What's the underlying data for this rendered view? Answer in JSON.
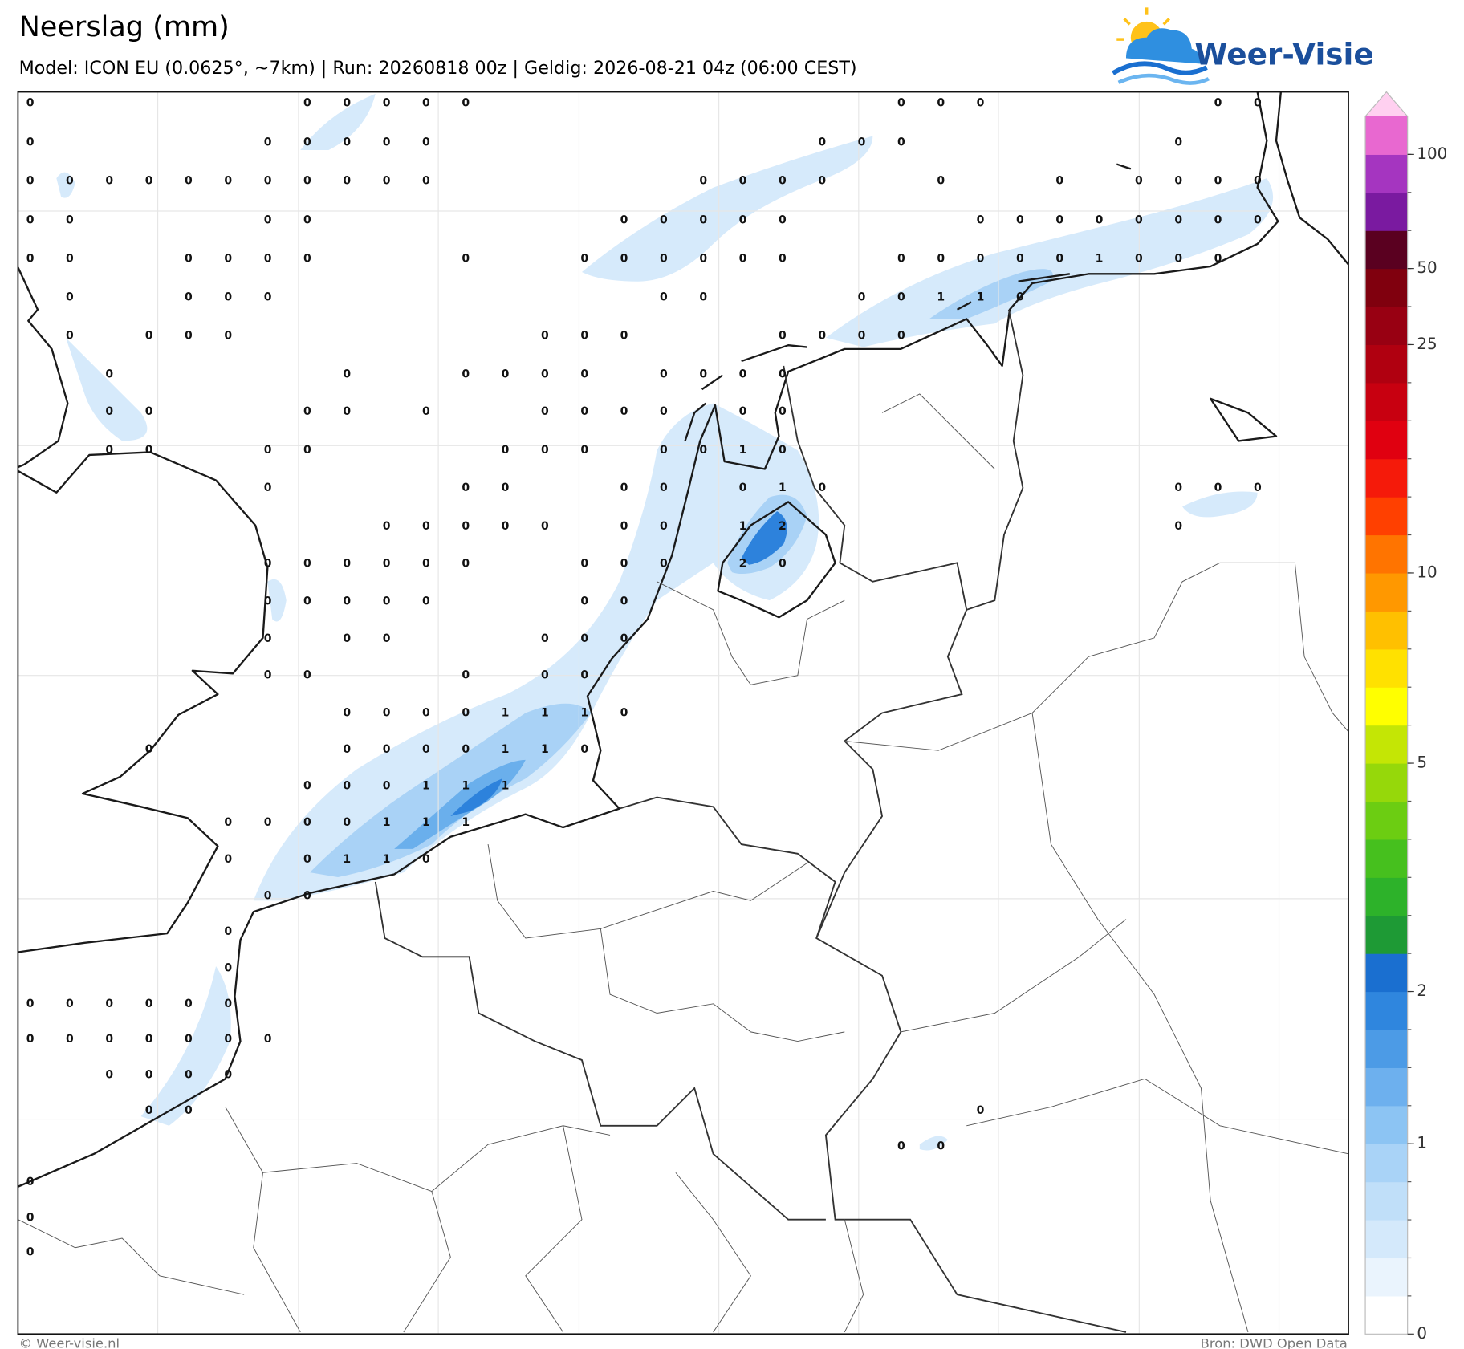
{
  "header": {
    "title": "Neerslag (mm)",
    "subtitle": "Model: ICON EU (0.0625°, ~7km)  |  Run: 20260818 00z  |  Geldig: 2026-08-21 04z (06:00 CEST)"
  },
  "logo": "Weer-Visie",
  "legend": {
    "ticks": [
      0,
      1,
      2,
      5,
      10,
      25,
      50,
      100
    ],
    "colors": [
      "#ffffff",
      "#eaf4fd",
      "#d4e9fb",
      "#c0dff9",
      "#a9d3f7",
      "#8cc4f3",
      "#6db0ee",
      "#4c9be6",
      "#2f86de",
      "#1a6fd0",
      "#1e9a35",
      "#2db22a",
      "#46c01e",
      "#6ccd12",
      "#96d80a",
      "#c4e605",
      "#ffff00",
      "#ffe100",
      "#ffc000",
      "#ff9800",
      "#ff7400",
      "#ff4000",
      "#f51a0a",
      "#e00010",
      "#c80010",
      "#b00010",
      "#980012",
      "#80000e",
      "#5a0020",
      "#7a1aa0",
      "#a535c0",
      "#e868d0",
      "#ffd0f0"
    ]
  },
  "grid": {
    "rows": [
      [
        0,
        null,
        null,
        null,
        null,
        null,
        null,
        0,
        0,
        0,
        0,
        0,
        null,
        null,
        null,
        null,
        null,
        null,
        null,
        null,
        null,
        null,
        0,
        0,
        0,
        null,
        null,
        null,
        null,
        null,
        0,
        0
      ],
      [
        0,
        null,
        null,
        null,
        null,
        null,
        0,
        0,
        0,
        0,
        0,
        null,
        null,
        null,
        null,
        null,
        null,
        null,
        null,
        null,
        0,
        0,
        0,
        null,
        null,
        null,
        null,
        null,
        null,
        0,
        null,
        null
      ],
      [
        0,
        0,
        0,
        0,
        0,
        0,
        0,
        0,
        0,
        0,
        0,
        null,
        null,
        null,
        null,
        null,
        null,
        0,
        0,
        0,
        0,
        null,
        null,
        0,
        null,
        null,
        0,
        null,
        0,
        0,
        0,
        0
      ],
      [
        0,
        0,
        null,
        null,
        null,
        null,
        0,
        0,
        null,
        null,
        null,
        null,
        null,
        null,
        null,
        0,
        0,
        0,
        0,
        0,
        null,
        null,
        null,
        null,
        0,
        0,
        0,
        0,
        0,
        0,
        0,
        0
      ],
      [
        0,
        0,
        null,
        null,
        0,
        0,
        0,
        0,
        null,
        null,
        null,
        0,
        null,
        null,
        0,
        0,
        0,
        0,
        0,
        0,
        null,
        null,
        0,
        0,
        0,
        0,
        0,
        1,
        0,
        0,
        0,
        null
      ],
      [
        null,
        0,
        null,
        null,
        0,
        0,
        0,
        null,
        null,
        null,
        null,
        null,
        null,
        null,
        null,
        null,
        0,
        0,
        null,
        null,
        null,
        0,
        0,
        1,
        1,
        0,
        null,
        null,
        null,
        null,
        null,
        null
      ],
      [
        null,
        0,
        null,
        0,
        0,
        0,
        null,
        null,
        null,
        null,
        null,
        null,
        null,
        0,
        0,
        0,
        null,
        null,
        null,
        0,
        0,
        0,
        0,
        null,
        null,
        null,
        null,
        null,
        null,
        null,
        null,
        null
      ],
      [
        null,
        null,
        0,
        null,
        null,
        null,
        null,
        null,
        0,
        null,
        null,
        0,
        0,
        0,
        0,
        null,
        0,
        0,
        0,
        0,
        null,
        null,
        null,
        null,
        null,
        null,
        null,
        null,
        null,
        null,
        null,
        null
      ],
      [
        null,
        null,
        0,
        0,
        null,
        null,
        null,
        0,
        0,
        null,
        0,
        null,
        null,
        0,
        0,
        0,
        0,
        null,
        0,
        0,
        null,
        null,
        null,
        null,
        null,
        null,
        null,
        null,
        null,
        null,
        null,
        null
      ],
      [
        null,
        null,
        0,
        0,
        null,
        null,
        0,
        0,
        null,
        null,
        null,
        null,
        0,
        0,
        0,
        null,
        0,
        0,
        1,
        0,
        null,
        null,
        null,
        null,
        null,
        null,
        null,
        null,
        null,
        null,
        null,
        null
      ],
      [
        null,
        null,
        null,
        null,
        null,
        null,
        0,
        null,
        null,
        null,
        null,
        0,
        0,
        null,
        null,
        0,
        0,
        null,
        0,
        1,
        0,
        null,
        null,
        null,
        null,
        null,
        null,
        null,
        null,
        0,
        0,
        0
      ],
      [
        null,
        null,
        null,
        null,
        null,
        null,
        null,
        null,
        null,
        0,
        0,
        0,
        0,
        0,
        null,
        0,
        0,
        null,
        1,
        2,
        null,
        null,
        null,
        null,
        null,
        null,
        null,
        null,
        null,
        0,
        null,
        null
      ],
      [
        null,
        null,
        null,
        null,
        null,
        null,
        0,
        0,
        0,
        0,
        0,
        0,
        null,
        null,
        0,
        0,
        0,
        null,
        2,
        0,
        null,
        null,
        null,
        null,
        null,
        null,
        null,
        null,
        null,
        null,
        null,
        null
      ],
      [
        null,
        null,
        null,
        null,
        null,
        null,
        0,
        0,
        0,
        0,
        0,
        null,
        null,
        null,
        0,
        0,
        null,
        null,
        null,
        null,
        null,
        null,
        null,
        null,
        null,
        null,
        null,
        null,
        null,
        null,
        null,
        null
      ],
      [
        null,
        null,
        null,
        null,
        null,
        null,
        0,
        null,
        0,
        0,
        null,
        null,
        null,
        0,
        0,
        0,
        null,
        null,
        null,
        null,
        null,
        null,
        null,
        null,
        null,
        null,
        null,
        null,
        null,
        null,
        null,
        null
      ],
      [
        null,
        null,
        null,
        null,
        null,
        null,
        0,
        0,
        null,
        null,
        null,
        0,
        null,
        0,
        0,
        null,
        null,
        null,
        null,
        null,
        null,
        null,
        null,
        null,
        null,
        null,
        null,
        null,
        null,
        null,
        null,
        null
      ],
      [
        null,
        null,
        null,
        null,
        null,
        null,
        null,
        null,
        0,
        0,
        0,
        0,
        1,
        1,
        1,
        0,
        null,
        null,
        null,
        null,
        null,
        null,
        null,
        null,
        null,
        null,
        null,
        null,
        null,
        null,
        null,
        null
      ],
      [
        null,
        null,
        null,
        0,
        null,
        null,
        null,
        null,
        0,
        0,
        0,
        0,
        1,
        1,
        0,
        null,
        null,
        null,
        null,
        null,
        null,
        null,
        null,
        null,
        null,
        null,
        null,
        null,
        null,
        null,
        null,
        null
      ],
      [
        null,
        null,
        null,
        null,
        null,
        null,
        null,
        0,
        0,
        0,
        1,
        1,
        1,
        null,
        null,
        null,
        null,
        null,
        null,
        null,
        null,
        null,
        null,
        null,
        null,
        null,
        null,
        null,
        null,
        null,
        null,
        null
      ],
      [
        null,
        null,
        null,
        null,
        null,
        0,
        0,
        0,
        0,
        1,
        1,
        1,
        null,
        null,
        null,
        null,
        null,
        null,
        null,
        null,
        null,
        null,
        null,
        null,
        null,
        null,
        null,
        null,
        null,
        null,
        null,
        null
      ],
      [
        null,
        null,
        null,
        null,
        null,
        0,
        null,
        0,
        1,
        1,
        0,
        null,
        null,
        null,
        null,
        null,
        null,
        null,
        null,
        null,
        null,
        null,
        null,
        null,
        null,
        null,
        null,
        null,
        null,
        null,
        null,
        null
      ],
      [
        null,
        null,
        null,
        null,
        null,
        null,
        0,
        0,
        null,
        null,
        null,
        null,
        null,
        null,
        null,
        null,
        null,
        null,
        null,
        null,
        null,
        null,
        null,
        null,
        null,
        null,
        null,
        null,
        null,
        null,
        null,
        null
      ],
      [
        null,
        null,
        null,
        null,
        null,
        0,
        null,
        null,
        null,
        null,
        null,
        null,
        null,
        null,
        null,
        null,
        null,
        null,
        null,
        null,
        null,
        null,
        null,
        null,
        null,
        null,
        null,
        null,
        null,
        null,
        null,
        null
      ],
      [
        null,
        null,
        null,
        null,
        null,
        0,
        null,
        null,
        null,
        null,
        null,
        null,
        null,
        null,
        null,
        null,
        null,
        null,
        null,
        null,
        null,
        null,
        null,
        null,
        null,
        null,
        null,
        null,
        null,
        null,
        null,
        null
      ],
      [
        0,
        0,
        0,
        0,
        0,
        0,
        null,
        null,
        null,
        null,
        null,
        null,
        null,
        null,
        null,
        null,
        null,
        null,
        null,
        null,
        null,
        null,
        null,
        null,
        null,
        null,
        null,
        null,
        null,
        null,
        null,
        null
      ],
      [
        0,
        0,
        0,
        0,
        0,
        0,
        0,
        null,
        null,
        null,
        null,
        null,
        null,
        null,
        null,
        null,
        null,
        null,
        null,
        null,
        null,
        null,
        null,
        null,
        null,
        null,
        null,
        null,
        null,
        null,
        null,
        null
      ],
      [
        null,
        null,
        0,
        0,
        0,
        0,
        null,
        null,
        null,
        null,
        null,
        null,
        null,
        null,
        null,
        null,
        null,
        null,
        null,
        null,
        null,
        null,
        null,
        null,
        null,
        null,
        null,
        null,
        null,
        null,
        null,
        null
      ],
      [
        null,
        null,
        null,
        0,
        0,
        null,
        null,
        null,
        null,
        null,
        null,
        null,
        null,
        null,
        null,
        null,
        null,
        null,
        null,
        null,
        null,
        null,
        null,
        null,
        0,
        null,
        null,
        null,
        null,
        null,
        null,
        null
      ],
      [
        null,
        null,
        null,
        null,
        null,
        null,
        null,
        null,
        null,
        null,
        null,
        null,
        null,
        null,
        null,
        null,
        null,
        null,
        null,
        null,
        null,
        null,
        0,
        0,
        null,
        null,
        null,
        null,
        null,
        null,
        null,
        null
      ],
      [
        0,
        null,
        null,
        null,
        null,
        null,
        null,
        null,
        null,
        null,
        null,
        null,
        null,
        null,
        null,
        null,
        null,
        null,
        null,
        null,
        null,
        null,
        null,
        null,
        null,
        null,
        null,
        null,
        null,
        null,
        null,
        null
      ],
      [
        0,
        null,
        null,
        null,
        null,
        null,
        null,
        null,
        null,
        null,
        null,
        null,
        null,
        null,
        null,
        null,
        null,
        null,
        null,
        null,
        null,
        null,
        null,
        null,
        null,
        null,
        null,
        null,
        null,
        null,
        null,
        null
      ],
      [
        0,
        null,
        null,
        null,
        null,
        null,
        null,
        null,
        null,
        null,
        null,
        null,
        null,
        null,
        null,
        null,
        null,
        null,
        null,
        null,
        null,
        null,
        null,
        null,
        null,
        null,
        null,
        null,
        null,
        null,
        null,
        null
      ]
    ]
  },
  "footer": {
    "left": "© Weer-visie.nl",
    "right": "Bron: DWD Open Data"
  }
}
